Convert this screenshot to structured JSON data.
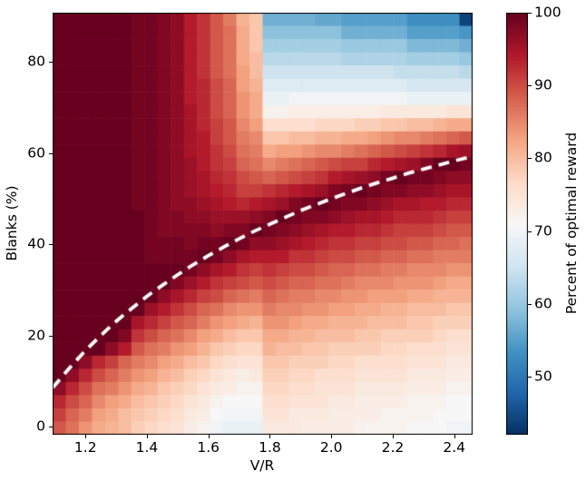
{
  "figure": {
    "xlabel": "V/R",
    "ylabel": "Blanks (%)",
    "colorbar_label": "Percent of optimal reward"
  },
  "chart_data": {
    "type": "heatmap",
    "title": "",
    "xlabel": "V/R",
    "ylabel": "Blanks (%)",
    "colorbar_label": "Percent of optimal reward",
    "x_range": [
      1.093,
      2.46
    ],
    "y_range": [
      -1.8,
      90.83
    ],
    "x_ticks": [
      {
        "v": 1.2,
        "label": "1.2"
      },
      {
        "v": 1.4,
        "label": "1.4"
      },
      {
        "v": 1.6,
        "label": "1.6"
      },
      {
        "v": 1.8,
        "label": "1.8"
      },
      {
        "v": 2.0,
        "label": "2.0"
      },
      {
        "v": 2.2,
        "label": "2.2"
      },
      {
        "v": 2.4,
        "label": "2.4"
      }
    ],
    "y_ticks": [
      {
        "v": 0,
        "label": "0"
      },
      {
        "v": 20,
        "label": "20"
      },
      {
        "v": 40,
        "label": "40"
      },
      {
        "v": 60,
        "label": "60"
      },
      {
        "v": 80,
        "label": "80"
      }
    ],
    "colorbar_ticks": [
      {
        "v": 50,
        "label": "50"
      },
      {
        "v": 60,
        "label": "60"
      },
      {
        "v": 70,
        "label": "70"
      },
      {
        "v": 80,
        "label": "80"
      },
      {
        "v": 90,
        "label": "90"
      },
      {
        "v": 100,
        "label": "100"
      }
    ],
    "vmin": 42,
    "vmax": 100,
    "colormap": "RdBu_r",
    "colormap_stops": [
      "#053061",
      "#2166ac",
      "#4393c3",
      "#92c5de",
      "#d1e5f0",
      "#f7f7f7",
      "#fddbc7",
      "#f4a582",
      "#d6604d",
      "#b2182b",
      "#67001f"
    ],
    "grid_shape": [
      32,
      32
    ],
    "row_order": "top-to-bottom",
    "values": [
      [
        100,
        100,
        100,
        100,
        100,
        100,
        99,
        99,
        98,
        97,
        94,
        92,
        89,
        86,
        81,
        79,
        57,
        57,
        57,
        57,
        56,
        56,
        55,
        55,
        55,
        55,
        55,
        53,
        53,
        53,
        53,
        44
      ],
      [
        100,
        100,
        100,
        100,
        100,
        100,
        99,
        99,
        98,
        97,
        94,
        92,
        89,
        87,
        82,
        79,
        59,
        59,
        59,
        59,
        59,
        59,
        57,
        57,
        57,
        57,
        57,
        55,
        55,
        55,
        55,
        54
      ],
      [
        100,
        100,
        100,
        100,
        100,
        100,
        99,
        99,
        98,
        97,
        94,
        92,
        89,
        87,
        82,
        79,
        61,
        61,
        61,
        61,
        61,
        61,
        60,
        60,
        60,
        60,
        60,
        58,
        58,
        58,
        58,
        57
      ],
      [
        100,
        100,
        100,
        100,
        100,
        100,
        99,
        99,
        98,
        97,
        94,
        92,
        89,
        87,
        82,
        80,
        63,
        63,
        63,
        63,
        63,
        63,
        62,
        62,
        62,
        62,
        62,
        61,
        61,
        61,
        61,
        60
      ],
      [
        100,
        100,
        100,
        100,
        100,
        100,
        99,
        99,
        98,
        97,
        94,
        92,
        89,
        87,
        83,
        80,
        65,
        65,
        65,
        65,
        65,
        65,
        65,
        65,
        65,
        65,
        64,
        64,
        64,
        64,
        64,
        63
      ],
      [
        100,
        100,
        100,
        100,
        100,
        100,
        99,
        99,
        98,
        97,
        94,
        93,
        90,
        88,
        83,
        81,
        67,
        67,
        67,
        67,
        67,
        67,
        67,
        67,
        67,
        67,
        67,
        66,
        66,
        66,
        66,
        66
      ],
      [
        100,
        100,
        100,
        100,
        100,
        100,
        99,
        99,
        98,
        97,
        94,
        93,
        90,
        88,
        84,
        82,
        69,
        69,
        70,
        70,
        70,
        70,
        70,
        70,
        70,
        70,
        70,
        69,
        69,
        69,
        69,
        69
      ],
      [
        100,
        100,
        100,
        100,
        100,
        100,
        99,
        99,
        98,
        97,
        95,
        93,
        90,
        88,
        84,
        82,
        72,
        72,
        73,
        73,
        73,
        73,
        73,
        73,
        73,
        74,
        74,
        74,
        74,
        74,
        75,
        75
      ],
      [
        100,
        100,
        100,
        100,
        100,
        100,
        99,
        99,
        98,
        97,
        95,
        93,
        91,
        89,
        85,
        83,
        76,
        76,
        76,
        76,
        77,
        77,
        77,
        78,
        78,
        79,
        79,
        80,
        80,
        81,
        82,
        82
      ],
      [
        100,
        100,
        100,
        100,
        100,
        100,
        99,
        99,
        98,
        97,
        95,
        94,
        91,
        89,
        86,
        85,
        79,
        79,
        80,
        80,
        81,
        81,
        82,
        82,
        83,
        84,
        85,
        85,
        86,
        87,
        88,
        89
      ],
      [
        100,
        100,
        100,
        100,
        100,
        100,
        99,
        99,
        98,
        97,
        95,
        94,
        92,
        90,
        87,
        86,
        82,
        83,
        83,
        84,
        85,
        85,
        86,
        87,
        88,
        89,
        90,
        91,
        92,
        93,
        95,
        96
      ],
      [
        100,
        100,
        100,
        100,
        100,
        100,
        99,
        99,
        98,
        97,
        96,
        94,
        92,
        91,
        88,
        87,
        85,
        86,
        87,
        88,
        89,
        90,
        91,
        91,
        93,
        94,
        95,
        96,
        98,
        100,
        100,
        99
      ],
      [
        100,
        100,
        100,
        100,
        100,
        100,
        99,
        99,
        98,
        97,
        96,
        95,
        93,
        92,
        90,
        89,
        88,
        89,
        90,
        91,
        92,
        94,
        95,
        96,
        97,
        99,
        100,
        99,
        99,
        98,
        97,
        97
      ],
      [
        100,
        100,
        100,
        100,
        100,
        100,
        99,
        99,
        98,
        97,
        96,
        95,
        94,
        93,
        91,
        91,
        92,
        93,
        94,
        95,
        96,
        98,
        99,
        100,
        99,
        98,
        98,
        97,
        97,
        96,
        95,
        95
      ],
      [
        100,
        100,
        100,
        100,
        100,
        100,
        99,
        99,
        98,
        97,
        97,
        96,
        95,
        94,
        93,
        94,
        95,
        96,
        98,
        99,
        100,
        99,
        98,
        98,
        97,
        96,
        95,
        95,
        94,
        94,
        93,
        93
      ],
      [
        100,
        100,
        100,
        100,
        100,
        100,
        100,
        99,
        98,
        98,
        97,
        97,
        96,
        96,
        96,
        97,
        98,
        100,
        99,
        98,
        98,
        97,
        96,
        95,
        95,
        94,
        93,
        93,
        93,
        92,
        91,
        91
      ],
      [
        100,
        100,
        100,
        100,
        100,
        100,
        100,
        99,
        98,
        98,
        98,
        98,
        97,
        98,
        98,
        100,
        99,
        98,
        97,
        96,
        95,
        94,
        94,
        93,
        93,
        92,
        91,
        91,
        91,
        90,
        89,
        89
      ],
      [
        100,
        100,
        100,
        100,
        100,
        100,
        100,
        99,
        99,
        99,
        98,
        99,
        99,
        100,
        99,
        97,
        97,
        96,
        95,
        94,
        93,
        92,
        92,
        91,
        91,
        90,
        90,
        89,
        89,
        88,
        88,
        87
      ],
      [
        100,
        100,
        100,
        100,
        100,
        100,
        100,
        99,
        99,
        99,
        99,
        100,
        99,
        97,
        95,
        94,
        94,
        94,
        92,
        92,
        91,
        90,
        90,
        89,
        89,
        88,
        88,
        87,
        87,
        86,
        86,
        86
      ],
      [
        100,
        100,
        100,
        100,
        100,
        100,
        100,
        100,
        100,
        100,
        99,
        97,
        95,
        94,
        92,
        91,
        92,
        91,
        90,
        90,
        89,
        88,
        88,
        87,
        87,
        86,
        86,
        85,
        85,
        85,
        84,
        84
      ],
      [
        100,
        100,
        100,
        100,
        100,
        100,
        100,
        100,
        100,
        98,
        96,
        94,
        92,
        91,
        90,
        89,
        90,
        89,
        88,
        88,
        87,
        87,
        86,
        85,
        85,
        85,
        84,
        84,
        84,
        83,
        82,
        82
      ],
      [
        100,
        100,
        100,
        100,
        100,
        100,
        100,
        100,
        97,
        95,
        93,
        91,
        90,
        88,
        87,
        86,
        88,
        87,
        86,
        86,
        85,
        85,
        84,
        84,
        83,
        83,
        83,
        82,
        82,
        81,
        81,
        81
      ],
      [
        100,
        100,
        100,
        100,
        100,
        100,
        100,
        96,
        94,
        92,
        90,
        88,
        87,
        85,
        84,
        84,
        86,
        85,
        85,
        84,
        84,
        83,
        83,
        82,
        82,
        81,
        81,
        80,
        80,
        80,
        79,
        79
      ],
      [
        100,
        100,
        100,
        100,
        100,
        100,
        95,
        93,
        91,
        89,
        88,
        86,
        84,
        83,
        82,
        81,
        84,
        84,
        83,
        82,
        82,
        81,
        81,
        81,
        80,
        80,
        80,
        79,
        79,
        78,
        78,
        78
      ],
      [
        100,
        100,
        100,
        100,
        100,
        98,
        92,
        90,
        88,
        87,
        85,
        83,
        82,
        80,
        79,
        79,
        82,
        82,
        81,
        81,
        80,
        80,
        80,
        79,
        79,
        78,
        78,
        78,
        78,
        77,
        76,
        76
      ],
      [
        100,
        100,
        100,
        100,
        97,
        94,
        89,
        87,
        86,
        84,
        83,
        81,
        79,
        78,
        77,
        77,
        81,
        80,
        80,
        79,
        79,
        78,
        78,
        78,
        78,
        77,
        77,
        76,
        76,
        76,
        75,
        75
      ],
      [
        100,
        100,
        97,
        93,
        91,
        88,
        86,
        85,
        83,
        82,
        80,
        79,
        77,
        76,
        75,
        75,
        79,
        79,
        78,
        78,
        78,
        77,
        77,
        76,
        76,
        76,
        76,
        75,
        75,
        75,
        74,
        74
      ],
      [
        100,
        97,
        93,
        90,
        88,
        86,
        84,
        83,
        81,
        80,
        78,
        77,
        75,
        74,
        73,
        74,
        78,
        78,
        77,
        77,
        76,
        76,
        76,
        75,
        75,
        75,
        75,
        74,
        74,
        74,
        73,
        73
      ],
      [
        97,
        93,
        90,
        87,
        86,
        84,
        82,
        81,
        79,
        78,
        77,
        75,
        74,
        73,
        72,
        72,
        77,
        77,
        76,
        76,
        75,
        75,
        75,
        74,
        74,
        74,
        74,
        73,
        73,
        73,
        72,
        72
      ],
      [
        93,
        90,
        88,
        85,
        83,
        82,
        80,
        79,
        78,
        77,
        75,
        74,
        72,
        71,
        71,
        71,
        76,
        76,
        75,
        75,
        75,
        74,
        74,
        73,
        73,
        73,
        73,
        72,
        72,
        72,
        71,
        71
      ],
      [
        91,
        88,
        86,
        83,
        82,
        80,
        79,
        78,
        77,
        76,
        74,
        73,
        71,
        70,
        70,
        70,
        75,
        75,
        74,
        74,
        74,
        73,
        73,
        73,
        73,
        72,
        72,
        72,
        72,
        71,
        71,
        71
      ],
      [
        89,
        87,
        84,
        82,
        81,
        80,
        78,
        77,
        76,
        75,
        73,
        72,
        70,
        69,
        69,
        69,
        74,
        74,
        74,
        73,
        73,
        73,
        73,
        72,
        72,
        72,
        72,
        71,
        71,
        71,
        70,
        70
      ]
    ],
    "overlay_curve": {
      "style": "dashed",
      "color": "#ffffff",
      "line_width": 3.8,
      "dash": [
        12,
        8
      ],
      "formula": "blanks = 100*(1 - R/V)",
      "points": [
        [
          1.093,
          8.5
        ],
        [
          1.15,
          13.0
        ],
        [
          1.2,
          16.7
        ],
        [
          1.25,
          20.0
        ],
        [
          1.3,
          23.1
        ],
        [
          1.35,
          25.9
        ],
        [
          1.4,
          28.6
        ],
        [
          1.45,
          31.0
        ],
        [
          1.5,
          33.3
        ],
        [
          1.55,
          35.5
        ],
        [
          1.6,
          37.5
        ],
        [
          1.65,
          39.4
        ],
        [
          1.7,
          41.2
        ],
        [
          1.75,
          42.9
        ],
        [
          1.8,
          44.4
        ],
        [
          1.85,
          45.9
        ],
        [
          1.9,
          47.4
        ],
        [
          1.95,
          48.7
        ],
        [
          2.0,
          50.0
        ],
        [
          2.05,
          51.2
        ],
        [
          2.1,
          52.4
        ],
        [
          2.15,
          53.5
        ],
        [
          2.2,
          54.5
        ],
        [
          2.25,
          55.6
        ],
        [
          2.3,
          56.5
        ],
        [
          2.35,
          57.4
        ],
        [
          2.4,
          58.3
        ],
        [
          2.46,
          59.3
        ]
      ]
    },
    "legend": "none",
    "grid": false
  }
}
